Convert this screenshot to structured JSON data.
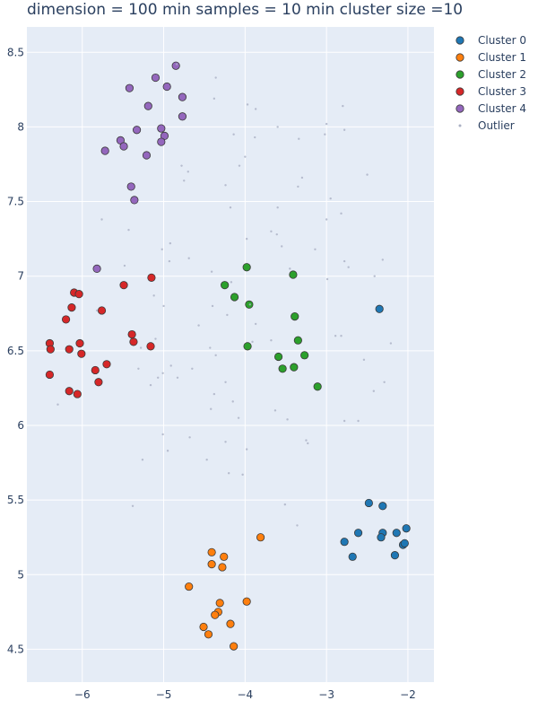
{
  "chart_data": {
    "type": "scatter",
    "title": "dimension = 100 min samples = 10 min cluster size =10",
    "xlabel": "",
    "ylabel": "",
    "xlim": [
      -6.68,
      -1.68
    ],
    "ylim": [
      4.28,
      8.67
    ],
    "x_ticks": [
      -6,
      -5,
      -4,
      -3,
      -2
    ],
    "y_ticks": [
      4.5,
      5,
      5.5,
      6,
      6.5,
      7,
      7.5,
      8,
      8.5
    ],
    "x_tick_labels": [
      "−6",
      "−5",
      "−4",
      "−3",
      "−2"
    ],
    "y_tick_labels": [
      "4.5",
      "5",
      "5.5",
      "6",
      "6.5",
      "7",
      "7.5",
      "8",
      "8.5"
    ],
    "grid": true,
    "legend_position": "top-right",
    "series": [
      {
        "name": "Cluster 0",
        "color": "#1f77b4",
        "points": [
          [
            -2.35,
            6.78
          ],
          [
            -2.48,
            5.48
          ],
          [
            -2.31,
            5.46
          ],
          [
            -2.02,
            5.31
          ],
          [
            -2.14,
            5.28
          ],
          [
            -2.31,
            5.28
          ],
          [
            -2.61,
            5.28
          ],
          [
            -2.33,
            5.25
          ],
          [
            -2.78,
            5.22
          ],
          [
            -2.06,
            5.2
          ],
          [
            -2.04,
            5.21
          ],
          [
            -2.16,
            5.13
          ],
          [
            -2.68,
            5.12
          ]
        ]
      },
      {
        "name": "Cluster 1",
        "color": "#ff7f0e",
        "points": [
          [
            -3.81,
            5.25
          ],
          [
            -4.41,
            5.15
          ],
          [
            -4.26,
            5.12
          ],
          [
            -4.41,
            5.07
          ],
          [
            -4.28,
            5.05
          ],
          [
            -4.69,
            4.92
          ],
          [
            -4.31,
            4.81
          ],
          [
            -3.98,
            4.82
          ],
          [
            -4.33,
            4.75
          ],
          [
            -4.37,
            4.73
          ],
          [
            -4.18,
            4.67
          ],
          [
            -4.51,
            4.65
          ],
          [
            -4.45,
            4.6
          ],
          [
            -4.14,
            4.52
          ]
        ]
      },
      {
        "name": "Cluster 2",
        "color": "#2ca02c",
        "points": [
          [
            -3.98,
            7.06
          ],
          [
            -3.41,
            7.01
          ],
          [
            -4.25,
            6.94
          ],
          [
            -4.13,
            6.86
          ],
          [
            -3.95,
            6.81
          ],
          [
            -3.39,
            6.73
          ],
          [
            -3.35,
            6.57
          ],
          [
            -3.97,
            6.53
          ],
          [
            -3.27,
            6.47
          ],
          [
            -3.59,
            6.46
          ],
          [
            -3.4,
            6.39
          ],
          [
            -3.54,
            6.38
          ],
          [
            -3.11,
            6.26
          ]
        ]
      },
      {
        "name": "Cluster 3",
        "color": "#d62728",
        "points": [
          [
            -5.15,
            6.99
          ],
          [
            -5.49,
            6.94
          ],
          [
            -6.1,
            6.89
          ],
          [
            -6.04,
            6.88
          ],
          [
            -6.13,
            6.79
          ],
          [
            -5.76,
            6.77
          ],
          [
            -6.2,
            6.71
          ],
          [
            -5.39,
            6.61
          ],
          [
            -5.37,
            6.56
          ],
          [
            -6.03,
            6.55
          ],
          [
            -6.4,
            6.55
          ],
          [
            -5.16,
            6.53
          ],
          [
            -6.16,
            6.51
          ],
          [
            -6.39,
            6.51
          ],
          [
            -6.01,
            6.48
          ],
          [
            -5.7,
            6.41
          ],
          [
            -5.84,
            6.37
          ],
          [
            -6.4,
            6.34
          ],
          [
            -5.8,
            6.29
          ],
          [
            -6.16,
            6.23
          ],
          [
            -6.06,
            6.21
          ]
        ]
      },
      {
        "name": "Cluster 4",
        "color": "#9467bd",
        "points": [
          [
            -4.85,
            8.41
          ],
          [
            -5.1,
            8.33
          ],
          [
            -4.96,
            8.27
          ],
          [
            -5.42,
            8.26
          ],
          [
            -4.77,
            8.2
          ],
          [
            -5.19,
            8.14
          ],
          [
            -4.77,
            8.07
          ],
          [
            -5.33,
            7.98
          ],
          [
            -5.03,
            7.99
          ],
          [
            -4.99,
            7.94
          ],
          [
            -5.03,
            7.9
          ],
          [
            -5.53,
            7.91
          ],
          [
            -5.49,
            7.87
          ],
          [
            -5.72,
            7.84
          ],
          [
            -5.21,
            7.81
          ],
          [
            -5.4,
            7.6
          ],
          [
            -5.36,
            7.51
          ],
          [
            -5.82,
            7.05
          ]
        ]
      },
      {
        "name": "Outlier",
        "color": "#aab0c4",
        "points": [
          [
            -4.84,
            8.42
          ],
          [
            -4.36,
            8.33
          ],
          [
            -2.8,
            8.14
          ],
          [
            -3.97,
            8.15
          ],
          [
            -3.87,
            8.12
          ],
          [
            -4.38,
            8.19
          ],
          [
            -3.0,
            8.02
          ],
          [
            -3.6,
            8.0
          ],
          [
            -2.78,
            7.98
          ],
          [
            -4.14,
            7.95
          ],
          [
            -3.88,
            7.93
          ],
          [
            -3.34,
            7.92
          ],
          [
            -3.02,
            7.95
          ],
          [
            -4.0,
            7.8
          ],
          [
            -4.78,
            7.74
          ],
          [
            -4.07,
            7.74
          ],
          [
            -4.7,
            7.7
          ],
          [
            -3.3,
            7.66
          ],
          [
            -2.5,
            7.68
          ],
          [
            -4.75,
            7.64
          ],
          [
            -4.24,
            7.61
          ],
          [
            -3.35,
            7.6
          ],
          [
            -2.95,
            7.52
          ],
          [
            -4.18,
            7.46
          ],
          [
            -3.6,
            7.46
          ],
          [
            -3.0,
            7.38
          ],
          [
            -5.76,
            7.38
          ],
          [
            -2.82,
            7.42
          ],
          [
            -5.43,
            7.31
          ],
          [
            -3.61,
            7.28
          ],
          [
            -3.98,
            7.25
          ],
          [
            -3.68,
            7.3
          ],
          [
            -4.92,
            7.22
          ],
          [
            -5.02,
            7.18
          ],
          [
            -3.55,
            7.2
          ],
          [
            -3.14,
            7.18
          ],
          [
            -4.69,
            7.12
          ],
          [
            -4.93,
            7.1
          ],
          [
            -2.31,
            7.11
          ],
          [
            -2.78,
            7.1
          ],
          [
            -2.73,
            7.06
          ],
          [
            -5.48,
            7.07
          ],
          [
            -4.41,
            7.03
          ],
          [
            -3.45,
            7.05
          ],
          [
            -2.41,
            7.0
          ],
          [
            -2.99,
            6.98
          ],
          [
            -4.17,
            6.96
          ],
          [
            -5.12,
            6.87
          ],
          [
            -4.4,
            6.8
          ],
          [
            -5.0,
            6.8
          ],
          [
            -3.94,
            6.81
          ],
          [
            -4.22,
            6.74
          ],
          [
            -5.82,
            6.77
          ],
          [
            -4.57,
            6.67
          ],
          [
            -3.87,
            6.68
          ],
          [
            -2.89,
            6.6
          ],
          [
            -2.82,
            6.6
          ],
          [
            -3.68,
            6.57
          ],
          [
            -3.91,
            6.56
          ],
          [
            -5.1,
            6.58
          ],
          [
            -2.21,
            6.55
          ],
          [
            -5.28,
            6.52
          ],
          [
            -4.43,
            6.52
          ],
          [
            -4.36,
            6.47
          ],
          [
            -2.54,
            6.44
          ],
          [
            -4.91,
            6.4
          ],
          [
            -4.65,
            6.38
          ],
          [
            -5.31,
            6.38
          ],
          [
            -5.01,
            6.35
          ],
          [
            -4.83,
            6.32
          ],
          [
            -5.07,
            6.32
          ],
          [
            -2.29,
            6.29
          ],
          [
            -5.16,
            6.27
          ],
          [
            -4.24,
            6.29
          ],
          [
            -6.3,
            6.14
          ],
          [
            -4.38,
            6.21
          ],
          [
            -2.42,
            6.23
          ],
          [
            -3.63,
            6.1
          ],
          [
            -4.15,
            6.16
          ],
          [
            -4.42,
            6.11
          ],
          [
            -3.48,
            6.04
          ],
          [
            -4.08,
            6.05
          ],
          [
            -2.78,
            6.03
          ],
          [
            -2.61,
            6.03
          ],
          [
            -5.01,
            5.94
          ],
          [
            -4.68,
            5.92
          ],
          [
            -3.25,
            5.9
          ],
          [
            -4.24,
            5.89
          ],
          [
            -3.23,
            5.88
          ],
          [
            -4.95,
            5.83
          ],
          [
            -3.98,
            5.84
          ],
          [
            -4.47,
            5.77
          ],
          [
            -5.26,
            5.77
          ],
          [
            -4.2,
            5.68
          ],
          [
            -4.03,
            5.67
          ],
          [
            -5.38,
            5.46
          ],
          [
            -3.51,
            5.47
          ],
          [
            -3.36,
            5.33
          ]
        ]
      }
    ]
  }
}
